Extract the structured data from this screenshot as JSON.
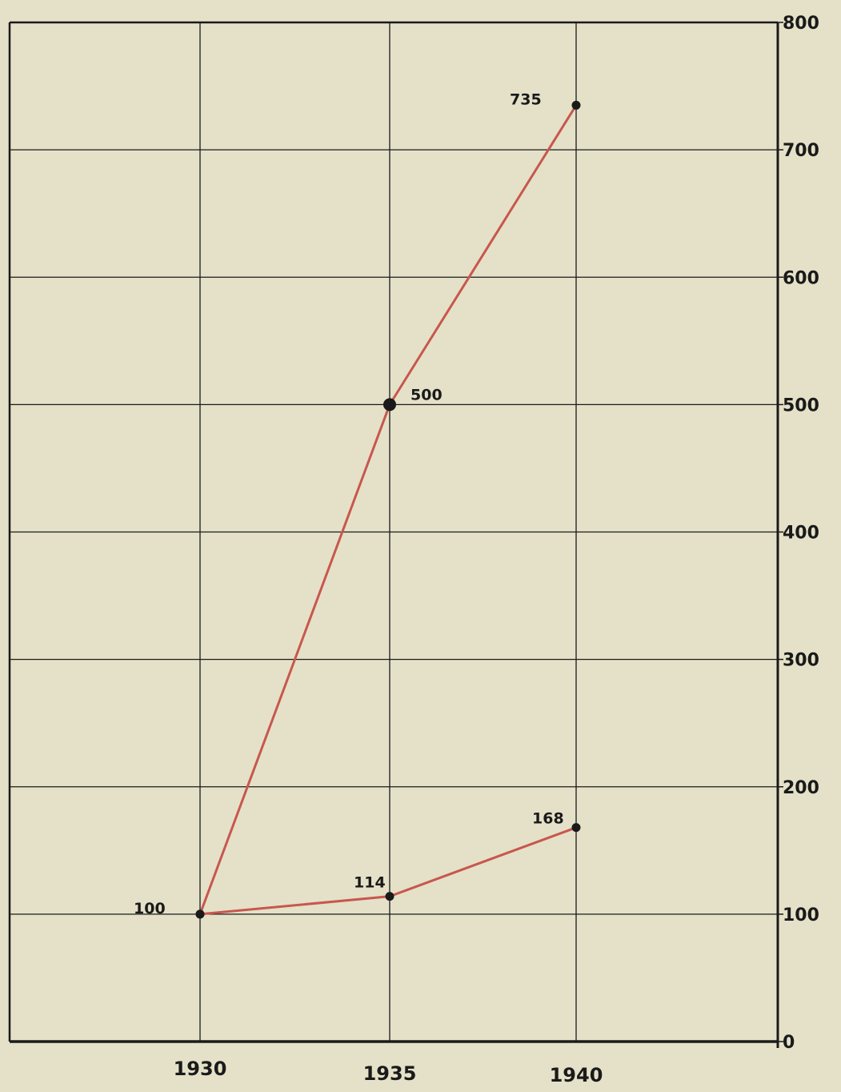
{
  "chart_data": {
    "type": "line",
    "x": [
      1930,
      1935,
      1940
    ],
    "x_tick_labels": [
      "1930",
      "1935",
      "1940"
    ],
    "series": [
      {
        "values": [
          100,
          500,
          735
        ],
        "data_labels": [
          "100",
          "500",
          "735"
        ]
      },
      {
        "values": [
          100,
          114,
          168
        ],
        "data_labels": [
          "100",
          "114",
          "168"
        ]
      }
    ],
    "ylim": [
      0,
      800
    ],
    "y_ticks": [
      0,
      100,
      200,
      300,
      400,
      500,
      600,
      700,
      800
    ],
    "y_tick_labels": [
      "0",
      "100",
      "200",
      "300",
      "400",
      "500",
      "600",
      "700",
      "800"
    ],
    "y_axis_side": "right",
    "grid": true,
    "title": "",
    "xlabel": "",
    "ylabel": "",
    "colors": {
      "background": "#e4e1c8",
      "grid": "#1a1a1a",
      "line": "#c8574e",
      "marker": "#1a1a1a"
    }
  }
}
